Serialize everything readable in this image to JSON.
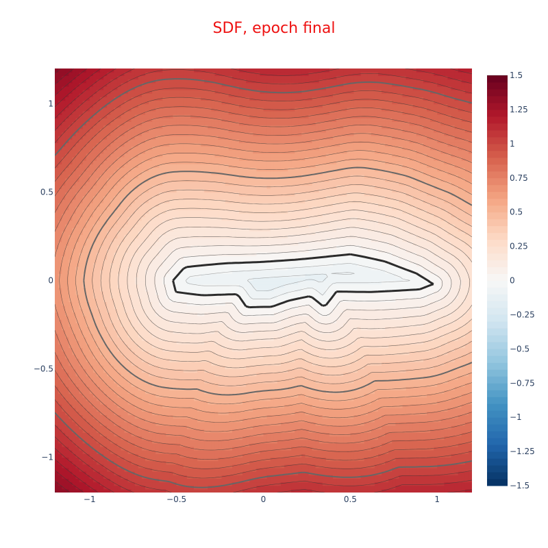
{
  "chart_data": {
    "type": "heatmap",
    "title": "SDF, epoch final",
    "title_color": "#ee1111",
    "xlabel": "",
    "ylabel": "",
    "xlim": [
      -1.2,
      1.2
    ],
    "ylim": [
      -1.2,
      1.2
    ],
    "x_ticks": [
      -1,
      -0.5,
      0,
      0.5,
      1
    ],
    "x_tick_labels": [
      "−1",
      "−0.5",
      "0",
      "0.5",
      "1"
    ],
    "y_ticks": [
      1,
      0.5,
      0,
      -0.5,
      -1
    ],
    "y_tick_labels": [
      "1",
      "0.5",
      "0",
      "−0.5",
      "−1"
    ],
    "colorbar": {
      "range": [
        -1.5,
        1.5
      ],
      "ticks": [
        1.5,
        1.25,
        1,
        0.75,
        0.5,
        0.25,
        0,
        -0.25,
        -0.5,
        -0.75,
        -1,
        -1.25,
        -1.5
      ],
      "tick_labels": [
        "1.5",
        "1.25",
        "1",
        "0.75",
        "0.5",
        "0.25",
        "0",
        "−0.25",
        "−0.5",
        "−0.75",
        "−1",
        "−1.25",
        "−1.5"
      ],
      "colorscale": "RdBu (reversed)"
    },
    "contour_step": 0.05,
    "emphasized_levels": [
      0,
      0.5,
      1
    ],
    "zero_level_set": {
      "description": "elongated blob centered near y=0",
      "x_extent": [
        -0.52,
        0.98
      ],
      "y_extent": [
        -0.17,
        0.14
      ]
    },
    "colors": {
      "positive_max": "#67001f",
      "positive_mid": "#f4a582",
      "zero": "#f7f7f7",
      "negative_mid": "#92c5de",
      "negative_max": "#053061"
    }
  }
}
